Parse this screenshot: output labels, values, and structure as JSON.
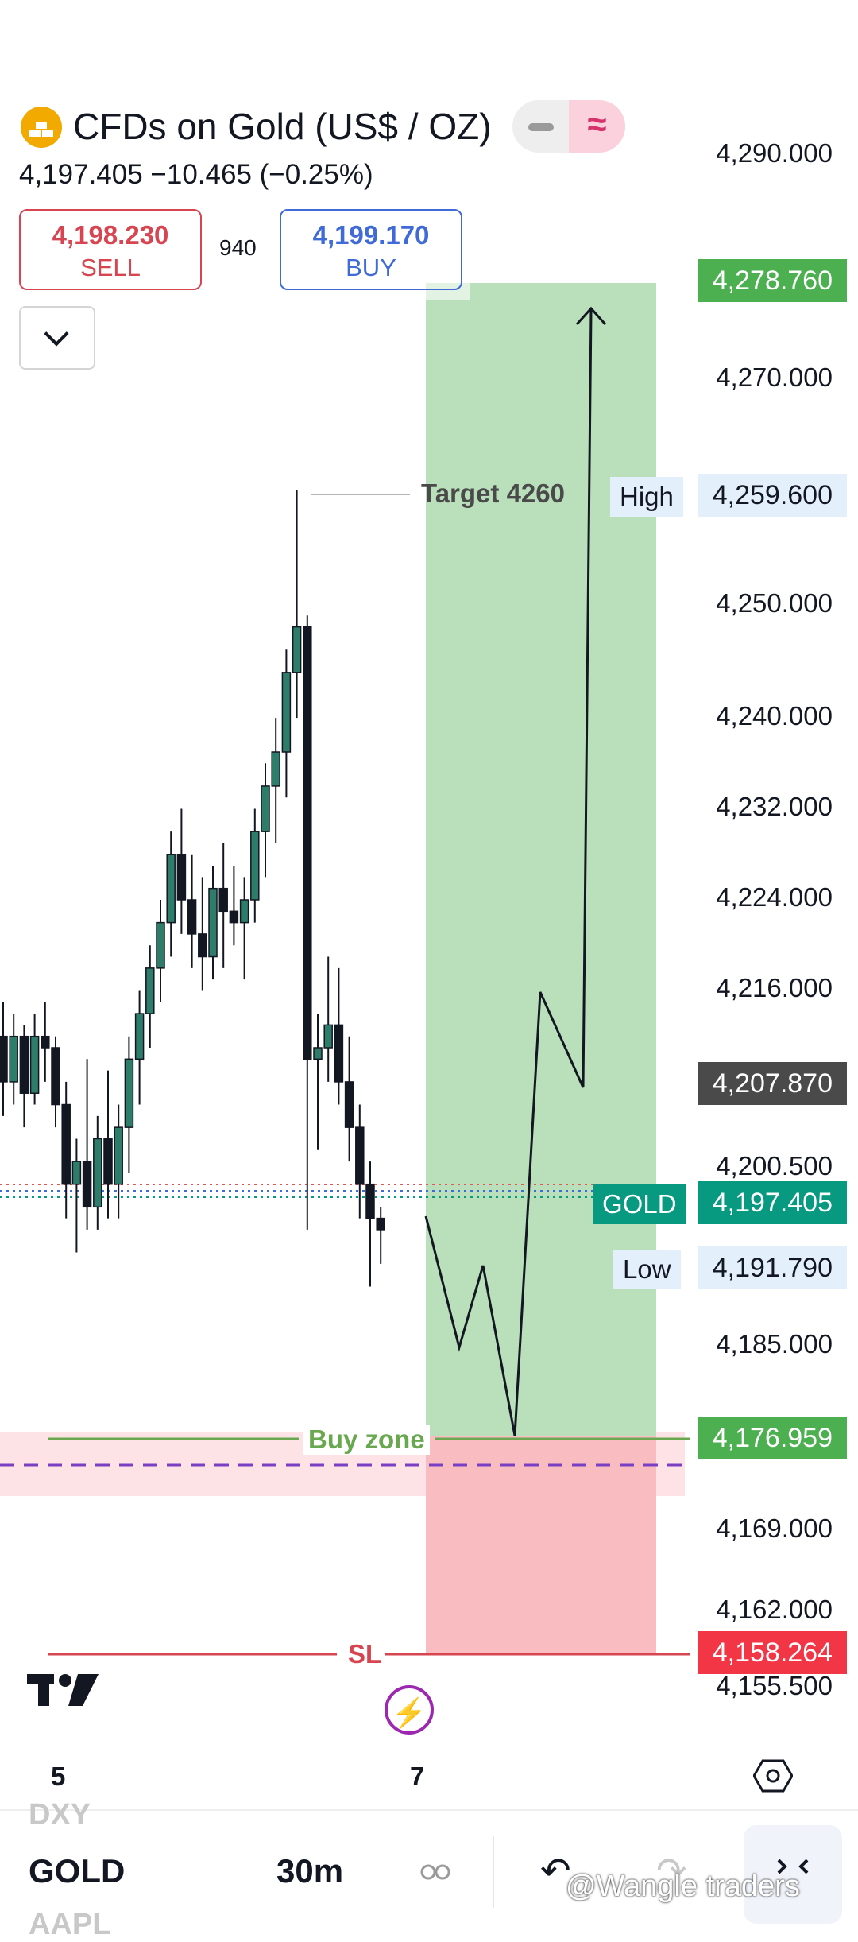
{
  "header": {
    "title": "CFDs on Gold (US$ / OZ)",
    "quote": "4,197.405  −10.465 (−0.25%)",
    "sell_price": "4,198.230",
    "sell_label": "SELL",
    "spread": "940",
    "buy_price": "4,199.170",
    "buy_label": "BUY",
    "pill_icon": "≈"
  },
  "price_axis": [
    "4,290.000",
    "4,270.000",
    "4,250.000",
    "4,240.000",
    "4,232.000",
    "4,224.000",
    "4,216.000",
    "4,200.500",
    "4,185.000",
    "4,169.000",
    "4,162.000",
    "4,155.500"
  ],
  "tags": {
    "target_price": "4,278.760",
    "high_label": "High",
    "high_price": "4,259.600",
    "countdown_price": "4,207.870",
    "symbol_label": "GOLD",
    "last_price": "4,197.405",
    "low_label": "Low",
    "low_price": "4,191.790",
    "buy_price": "4,176.959",
    "sl_price": "4,158.264"
  },
  "annotations": {
    "target": "Target 4260",
    "buy_zone": "Buy zone",
    "sl": "SL"
  },
  "time_axis": {
    "left": "5",
    "right": "7"
  },
  "bottom": {
    "prev_symbol": "DXY",
    "symbol": "GOLD",
    "next_symbol": "AAPL",
    "interval": "30m",
    "undo_icon": "↶",
    "redo_icon": "↷",
    "watermark": "@Wangle traders"
  },
  "colors": {
    "green_zone": "#b9e0bb",
    "red_zone": "#f9bcc1",
    "green_tag": "#4caf50",
    "red_tag": "#f23645",
    "teal_tag": "#089981",
    "dark_tag": "#4a4a4a",
    "buy_zone_line": "#6aa84f",
    "sl_line": "#d64550"
  }
}
